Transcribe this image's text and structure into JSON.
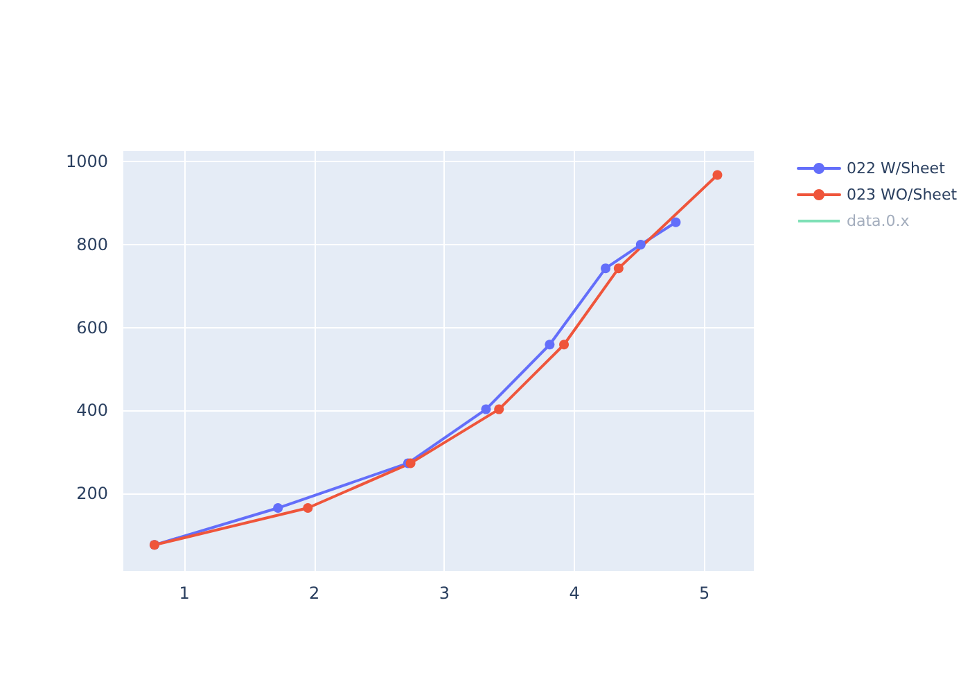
{
  "chart_data": {
    "type": "line",
    "xlim": [
      0.52,
      5.38
    ],
    "ylim": [
      13,
      1029
    ],
    "xticks": [
      1,
      2,
      3,
      4,
      5
    ],
    "yticks": [
      200,
      400,
      600,
      800,
      1000
    ],
    "grid": true,
    "legend": "top right",
    "marker": "circle",
    "line_style": "solid",
    "series": [
      {
        "name": "022 W/Sheet",
        "color": "#636efa",
        "x": [
          0.77,
          1.72,
          2.72,
          3.32,
          3.81,
          4.24,
          4.51,
          4.78
        ],
        "values": [
          76,
          165,
          273,
          403,
          559,
          743,
          800,
          854
        ]
      },
      {
        "name": "023 WO/Sheet",
        "color": "#ef553b",
        "x": [
          0.77,
          1.95,
          2.74,
          3.42,
          3.92,
          4.34,
          5.1
        ],
        "values": [
          76,
          165,
          273,
          403,
          559,
          743,
          968
        ]
      },
      {
        "name": "data.0.x",
        "color": "#7ee0b6",
        "marker": "none"
      }
    ]
  }
}
